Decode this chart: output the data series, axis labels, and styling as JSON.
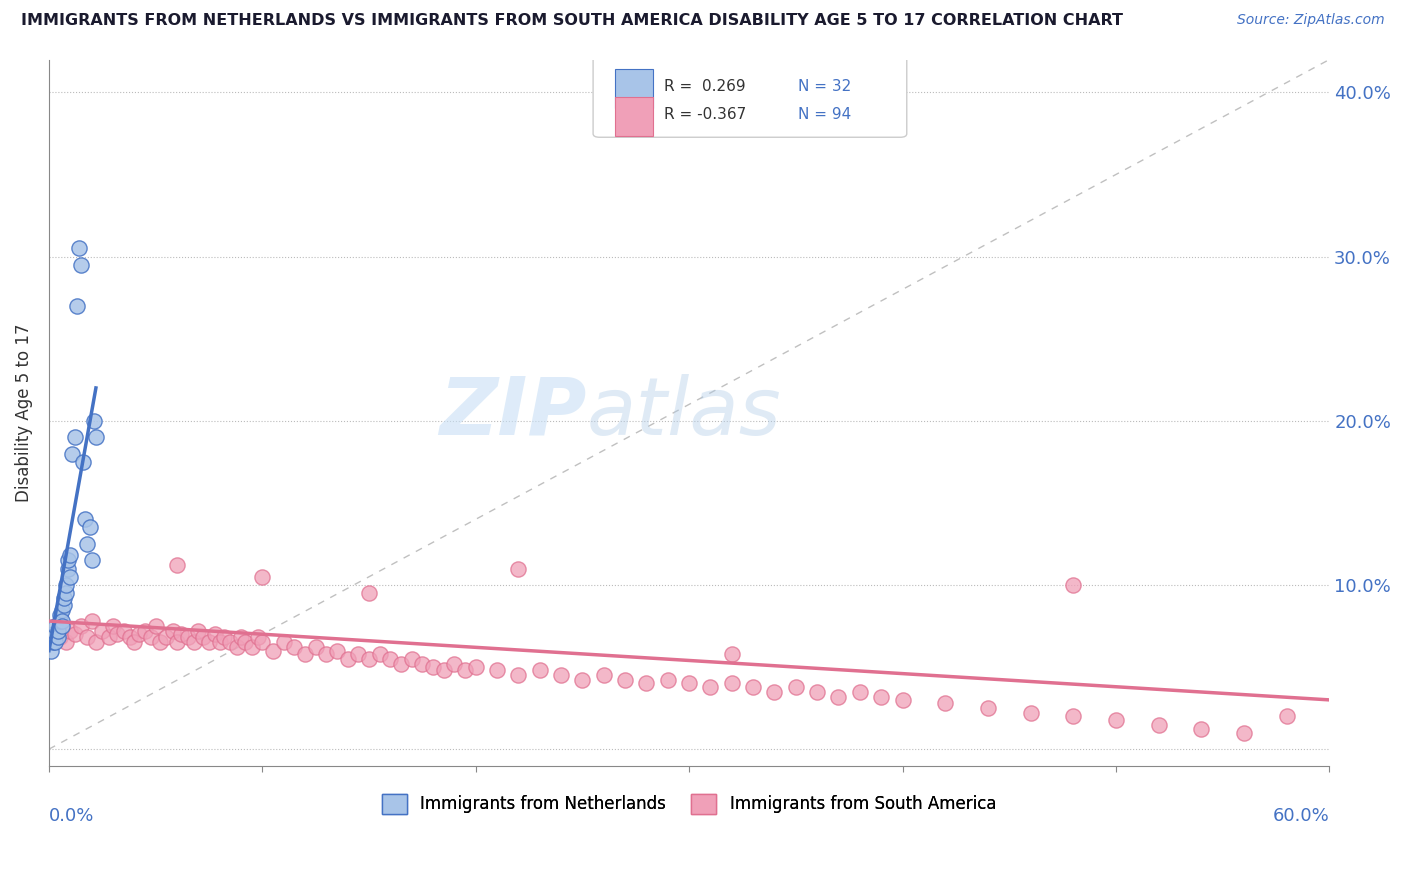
{
  "title": "IMMIGRANTS FROM NETHERLANDS VS IMMIGRANTS FROM SOUTH AMERICA DISABILITY AGE 5 TO 17 CORRELATION CHART",
  "source": "Source: ZipAtlas.com",
  "ylabel": "Disability Age 5 to 17",
  "xlim": [
    0.0,
    0.6
  ],
  "ylim": [
    -0.01,
    0.42
  ],
  "yticks": [
    0.0,
    0.1,
    0.2,
    0.3,
    0.4
  ],
  "ytick_labels": [
    "",
    "10.0%",
    "20.0%",
    "30.0%",
    "40.0%"
  ],
  "color_netherlands": "#a8c4e8",
  "color_south_america": "#f0a0b8",
  "color_netherlands_line": "#4472c4",
  "color_south_america_line": "#e07090",
  "color_diagonal": "#c0c0c0",
  "watermark_zip": "ZIP",
  "watermark_atlas": "atlas",
  "netherlands_x": [
    0.001,
    0.002,
    0.002,
    0.003,
    0.003,
    0.004,
    0.004,
    0.005,
    0.005,
    0.006,
    0.006,
    0.006,
    0.007,
    0.007,
    0.008,
    0.008,
    0.009,
    0.009,
    0.01,
    0.01,
    0.011,
    0.012,
    0.013,
    0.014,
    0.015,
    0.016,
    0.017,
    0.018,
    0.019,
    0.02,
    0.021,
    0.022
  ],
  "netherlands_y": [
    0.06,
    0.065,
    0.07,
    0.065,
    0.075,
    0.068,
    0.072,
    0.078,
    0.082,
    0.085,
    0.078,
    0.075,
    0.088,
    0.092,
    0.095,
    0.1,
    0.11,
    0.115,
    0.105,
    0.118,
    0.18,
    0.19,
    0.27,
    0.305,
    0.295,
    0.175,
    0.14,
    0.125,
    0.135,
    0.115,
    0.2,
    0.19
  ],
  "south_america_x": [
    0.005,
    0.008,
    0.01,
    0.012,
    0.015,
    0.018,
    0.02,
    0.022,
    0.025,
    0.028,
    0.03,
    0.032,
    0.035,
    0.038,
    0.04,
    0.042,
    0.045,
    0.048,
    0.05,
    0.052,
    0.055,
    0.058,
    0.06,
    0.062,
    0.065,
    0.068,
    0.07,
    0.072,
    0.075,
    0.078,
    0.08,
    0.082,
    0.085,
    0.088,
    0.09,
    0.092,
    0.095,
    0.098,
    0.1,
    0.105,
    0.11,
    0.115,
    0.12,
    0.125,
    0.13,
    0.135,
    0.14,
    0.145,
    0.15,
    0.155,
    0.16,
    0.165,
    0.17,
    0.175,
    0.18,
    0.185,
    0.19,
    0.195,
    0.2,
    0.21,
    0.22,
    0.23,
    0.24,
    0.25,
    0.26,
    0.27,
    0.28,
    0.29,
    0.3,
    0.31,
    0.32,
    0.33,
    0.34,
    0.35,
    0.36,
    0.37,
    0.38,
    0.39,
    0.4,
    0.42,
    0.44,
    0.46,
    0.48,
    0.5,
    0.52,
    0.54,
    0.56,
    0.48,
    0.22,
    0.32,
    0.15,
    0.1,
    0.06,
    0.58
  ],
  "south_america_y": [
    0.068,
    0.065,
    0.072,
    0.07,
    0.075,
    0.068,
    0.078,
    0.065,
    0.072,
    0.068,
    0.075,
    0.07,
    0.072,
    0.068,
    0.065,
    0.07,
    0.072,
    0.068,
    0.075,
    0.065,
    0.068,
    0.072,
    0.065,
    0.07,
    0.068,
    0.065,
    0.072,
    0.068,
    0.065,
    0.07,
    0.065,
    0.068,
    0.065,
    0.062,
    0.068,
    0.065,
    0.062,
    0.068,
    0.065,
    0.06,
    0.065,
    0.062,
    0.058,
    0.062,
    0.058,
    0.06,
    0.055,
    0.058,
    0.055,
    0.058,
    0.055,
    0.052,
    0.055,
    0.052,
    0.05,
    0.048,
    0.052,
    0.048,
    0.05,
    0.048,
    0.045,
    0.048,
    0.045,
    0.042,
    0.045,
    0.042,
    0.04,
    0.042,
    0.04,
    0.038,
    0.04,
    0.038,
    0.035,
    0.038,
    0.035,
    0.032,
    0.035,
    0.032,
    0.03,
    0.028,
    0.025,
    0.022,
    0.02,
    0.018,
    0.015,
    0.012,
    0.01,
    0.1,
    0.11,
    0.058,
    0.095,
    0.105,
    0.112,
    0.02
  ]
}
